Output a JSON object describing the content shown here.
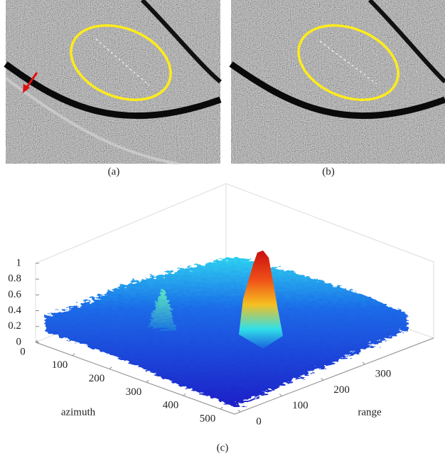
{
  "panels": [
    {
      "caption": "(a)"
    },
    {
      "caption": "(b)"
    }
  ],
  "panel_c": {
    "caption": "(c)",
    "z_ticks": [
      0,
      0.2,
      0.4,
      0.6,
      0.8,
      1
    ],
    "azimuth_label": "azimuth",
    "azimuth_ticks": [
      0,
      100,
      200,
      300,
      400,
      500
    ],
    "range_label": "range",
    "range_ticks": [
      0,
      100,
      200,
      300
    ]
  }
}
